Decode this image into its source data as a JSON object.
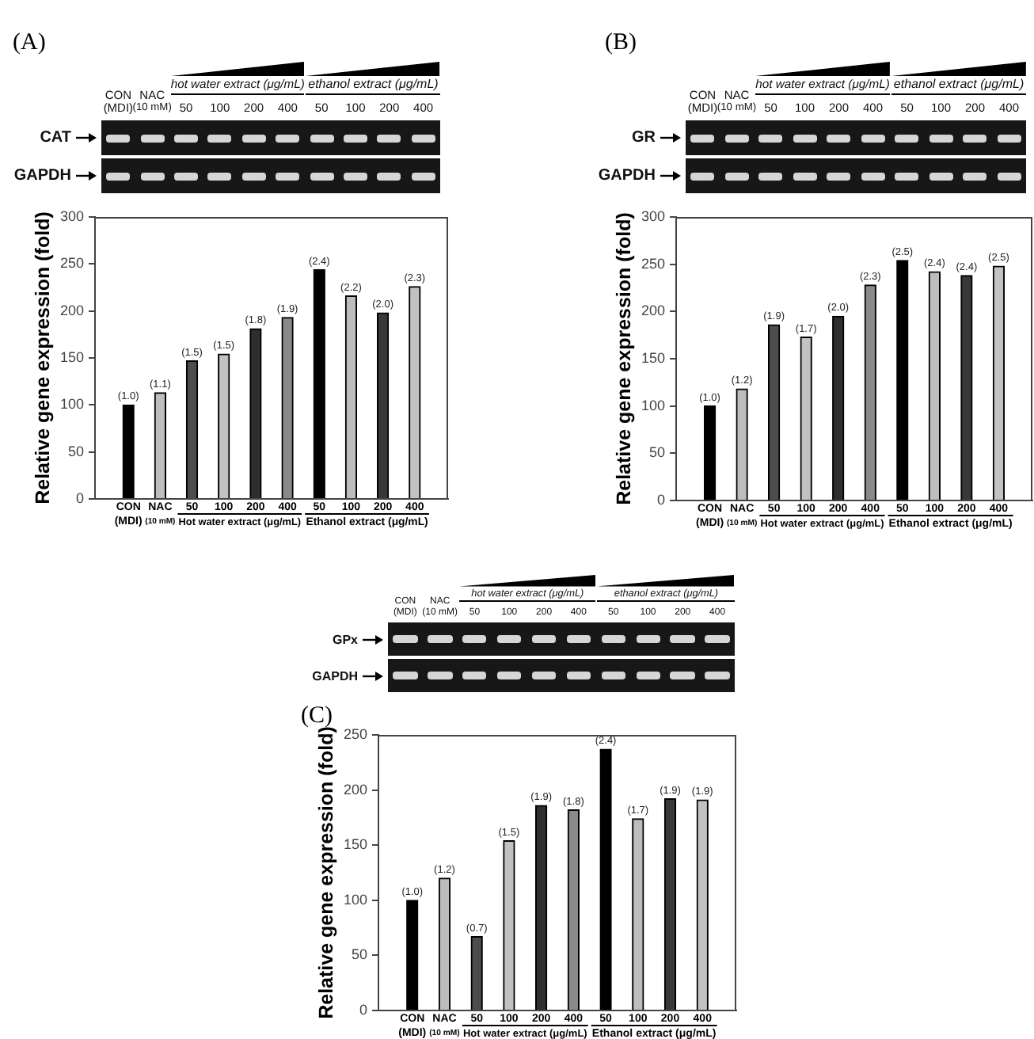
{
  "chart_data": [
    {
      "type": "bar",
      "title": "(A)",
      "ylabel": "Relative gene expression (fold)",
      "categories": [
        "CON\n(MDI)",
        "NAC\n(10 mM)",
        "50",
        "100",
        "200",
        "400",
        "50",
        "100",
        "200",
        "400"
      ],
      "values": [
        100,
        113,
        147,
        154,
        181,
        193,
        244,
        216,
        198,
        226
      ],
      "colors": [
        "#000000",
        "#bdbdbd",
        "#4d4d4d",
        "#c2c2c2",
        "#2e2e2e",
        "#8a8a8a",
        "#000000",
        "#bdbdbd",
        "#383838",
        "#c2c2c2"
      ],
      "ylim": [
        0,
        300
      ],
      "yticks": [
        0,
        50,
        100,
        150,
        200,
        250,
        300
      ],
      "grid": false,
      "annotations": [
        "Hot water extract (μg/mL)",
        "Ethanol extract (μg/mL)",
        "hot water extract (μg/mL)",
        "ethanol extract (μg/mL)",
        "CAT",
        "GAPDH",
        "(1.0)",
        "(1.1)",
        "(1.5)",
        "(1.5)",
        "(1.8)",
        "(1.9)",
        "(2.4)",
        "(2.2)",
        "(2.0)",
        "(2.3)"
      ]
    },
    {
      "type": "bar",
      "title": "(B)",
      "ylabel": "Relative gene expression (fold)",
      "categories": [
        "CON\n(MDI)",
        "NAC\n(10 mM)",
        "50",
        "100",
        "200",
        "400",
        "50",
        "100",
        "200",
        "400"
      ],
      "values": [
        100,
        118,
        186,
        173,
        195,
        228,
        254,
        242,
        238,
        248
      ],
      "colors": [
        "#000000",
        "#bdbdbd",
        "#4d4d4d",
        "#c2c2c2",
        "#2e2e2e",
        "#8a8a8a",
        "#000000",
        "#bdbdbd",
        "#383838",
        "#c2c2c2"
      ],
      "ylim": [
        0,
        300
      ],
      "yticks": [
        0,
        50,
        100,
        150,
        200,
        250,
        300
      ],
      "grid": false,
      "annotations": [
        "Hot water extract (μg/mL)",
        "Ethanol extract (μg/mL)",
        "hot water extract (μg/mL)",
        "ethanol extract (μg/mL)",
        "GR",
        "GAPDH",
        "(1.0)",
        "(1.2)",
        "(1.9)",
        "(1.7)",
        "(2.0)",
        "(2.3)",
        "(2.5)",
        "(2.4)",
        "(2.4)",
        "(2.5)"
      ]
    },
    {
      "type": "bar",
      "title": "(C)",
      "ylabel": "Relative gene expression (fold)",
      "categories": [
        "CON\n(MDI)",
        "NAC\n(10 mM)",
        "50",
        "100",
        "200",
        "400",
        "50",
        "100",
        "200",
        "400"
      ],
      "values": [
        100,
        120,
        67,
        154,
        186,
        182,
        237,
        174,
        192,
        191
      ],
      "colors": [
        "#000000",
        "#bdbdbd",
        "#4d4d4d",
        "#c2c2c2",
        "#2e2e2e",
        "#8a8a8a",
        "#000000",
        "#bdbdbd",
        "#383838",
        "#c2c2c2"
      ],
      "ylim": [
        0,
        250
      ],
      "yticks": [
        0,
        50,
        100,
        150,
        200,
        250
      ],
      "grid": false,
      "annotations": [
        "Hot water extract (μg/mL)",
        "Ethanol extract (μg/mL)",
        "hot water extract (μg/mL)",
        "ethanol extract (μg/mL)",
        "GPx",
        "GAPDH",
        "(1.0)",
        "(1.2)",
        "(0.7)",
        "(1.5)",
        "(1.9)",
        "(1.8)",
        "(2.4)",
        "(1.7)",
        "(1.9)",
        "(1.9)"
      ]
    }
  ]
}
